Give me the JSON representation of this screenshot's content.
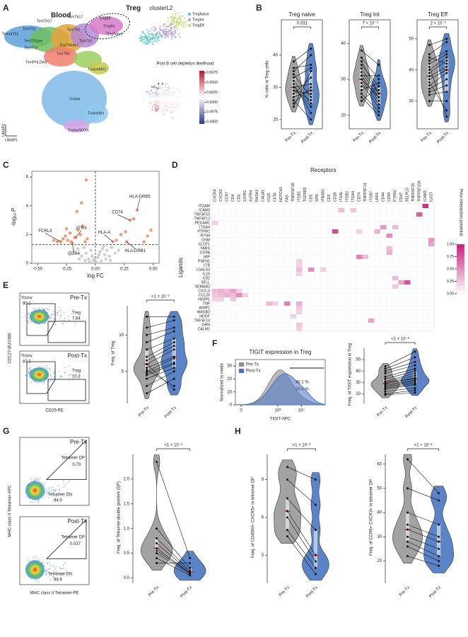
{
  "panel_labels": [
    "A",
    "B",
    "C",
    "D",
    "E",
    "F",
    "G",
    "H"
  ],
  "colors": {
    "pre": "#a3a3a3",
    "post": "#5a84c6"
  },
  "A": {
    "title": "Blood",
    "treg_label": "Treg",
    "clusters": [
      "TemTh17",
      "TcmTh17",
      "TregEff",
      "TregInt",
      "TregNaive",
      "TemraTh1",
      "TemTh1",
      "TemTh1pre",
      "TemTh2",
      "TcmTh1",
      "TcmTh2",
      "TcmTh0Act",
      "TcmTh0",
      "TemPHLDA3",
      "TnaiveMX1",
      "Tnaive",
      "TnaiveAct",
      "TnaiveSOX4"
    ],
    "umap_axes": [
      "UMAP2",
      "UMAP1"
    ],
    "cluster_title": "clusterL2",
    "legend": [
      {
        "name": "TregNaive",
        "color": "#55c4c0"
      },
      {
        "name": "TregInt",
        "color": "#b49ad8"
      },
      {
        "name": "TregEff",
        "color": "#c8d77a"
      }
    ],
    "likelihood_title": "Post B cell depletion likelihood",
    "likelihood_ylim": [
      0.4945,
      0.508
    ],
    "likelihood_ticks": [
      0.5075,
      {
        "value": 0.505,
        "label": "0.5050"
      },
      0.5025,
      {
        "value": 0.5,
        "label": "0.5000"
      },
      0.4975,
      {
        "value": 0.495,
        "label": "0.4950"
      }
    ],
    "likelihood_colors": [
      "#2b3a8f",
      "#ffffff",
      "#b2182b"
    ]
  },
  "B": {
    "ylabel": "% cells in Treg cells",
    "categories": [
      "Pre-Tx",
      "Post-Tx"
    ],
    "panels": [
      {
        "title": "Treg naive",
        "pvalue": "0.031",
        "ylim": [
          18,
          47
        ],
        "yticks": [
          20,
          30,
          40
        ],
        "pre": [
          38,
          35,
          33,
          31,
          30,
          29,
          32,
          28,
          27,
          26,
          34,
          36,
          30,
          25,
          24,
          29
        ],
        "post": [
          42,
          40,
          36,
          22,
          31,
          28,
          25,
          33,
          29,
          20,
          27,
          37,
          24,
          30,
          35,
          26
        ]
      },
      {
        "title": "Treg Int",
        "pvalue": "7 × 10⁻³",
        "ylim": [
          17,
          43
        ],
        "yticks": [
          20,
          30,
          40
        ],
        "pre": [
          38,
          36,
          34,
          33,
          32,
          31,
          30,
          29,
          28,
          27,
          26,
          25,
          35,
          31,
          30,
          24
        ],
        "post": [
          34,
          30,
          28,
          26,
          25,
          24,
          23,
          22,
          27,
          29,
          21,
          20,
          26,
          31,
          25,
          28
        ]
      },
      {
        "title": "Treg Eff",
        "pvalue": "2 × 10⁻³",
        "ylim": [
          22,
          52
        ],
        "yticks": [
          30,
          40,
          50
        ],
        "pre": [
          48,
          45,
          43,
          42,
          40,
          39,
          38,
          37,
          35,
          34,
          33,
          32,
          30,
          36,
          41,
          44
        ],
        "post": [
          50,
          49,
          46,
          45,
          44,
          43,
          41,
          40,
          39,
          37,
          35,
          33,
          30,
          27,
          25,
          42
        ]
      }
    ]
  },
  "C": {
    "ylabel": {
      "main": "-log",
      "sub": "10",
      "italic": "P"
    },
    "xlabel": "log FC",
    "xlim": [
      -0.55,
      0.55
    ],
    "ylim": [
      0,
      6.4
    ],
    "xticks": [
      {
        "value": -0.5,
        "label": "-0.50"
      },
      {
        "value": -0.25,
        "label": "-0.25"
      },
      {
        "value": 0,
        "label": "0.00"
      },
      {
        "value": 0.25,
        "label": "0.25"
      },
      {
        "value": 0.5,
        "label": "0.50"
      }
    ],
    "yticks": [
      0,
      2,
      4,
      6
    ],
    "hline": 1.3,
    "vline": 0,
    "series": [
      {
        "color": "#ee8d62",
        "x": [
          -0.36,
          -0.33,
          -0.3,
          -0.28,
          -0.26,
          -0.24,
          -0.22,
          -0.2,
          -0.18,
          -0.17,
          -0.15,
          -0.13,
          -0.11,
          -0.09,
          -0.07,
          -0.25,
          -0.21,
          -0.12,
          -0.08,
          -0.16,
          0.15,
          0.18,
          0.22,
          0.26,
          0.27,
          0.3,
          0.33,
          0.36,
          0.42,
          0.45,
          0.48
        ],
        "y": [
          1.6,
          1.5,
          1.5,
          1.7,
          1.9,
          1.6,
          2.1,
          1.4,
          1.8,
          1.8,
          2.3,
          2.0,
          2.6,
          1.5,
          1.7,
          2.4,
          1.5,
          4.2,
          5.8,
          3.6,
          1.5,
          1.6,
          2.0,
          2.2,
          1.5,
          3.0,
          3.1,
          3.7,
          1.5,
          1.9,
          2.3
        ]
      },
      {
        "color": "#c9c9c9",
        "x": [
          -0.22,
          -0.18,
          -0.15,
          -0.12,
          -0.1,
          -0.08,
          -0.06,
          -0.04,
          -0.02,
          0,
          0.02,
          0.04,
          0.06,
          0.08,
          0.1,
          0.12,
          0.14,
          0.17,
          0.2,
          -0.14,
          -0.09,
          -0.03,
          0.03,
          0.09,
          0.13,
          -0.05,
          0.05,
          0.01,
          -0.01,
          0.07
        ],
        "y": [
          0.6,
          0.8,
          1.0,
          0.5,
          1.1,
          0.7,
          0.3,
          0.9,
          0.2,
          0.1,
          0.4,
          0.8,
          1.0,
          0.6,
          0.9,
          0.5,
          1.1,
          0.7,
          0.9,
          0.3,
          0.2,
          0.5,
          0.6,
          0.3,
          0.2,
          0.1,
          0.15,
          0.05,
          0.3,
          1.2
        ]
      }
    ],
    "genes": [
      {
        "label": "FCRL3",
        "x": -0.3,
        "y": 1.5
      },
      {
        "label": "ATRX",
        "x": -0.17,
        "y": 1.8
      },
      {
        "label": "ITGA4",
        "x": -0.2,
        "y": 1.4
      },
      {
        "label": "HLA-A",
        "x": 0.15,
        "y": 1.5
      },
      {
        "label": "CD74",
        "x": 0.3,
        "y": 3.0
      },
      {
        "label": "HLA-DRB5",
        "x": 0.36,
        "y": 3.7
      },
      {
        "label": "HLA-DRB1",
        "x": 0.27,
        "y": 1.5
      }
    ]
  },
  "D": {
    "title_x": "Receptors",
    "title_y": "Ligands",
    "receptors": [
      "CXCR4",
      "CXCR3",
      "CCR7",
      "CD4",
      "CD6",
      "S1PR1",
      "S1PR4",
      "RASA3",
      "CALM1",
      "ICOS",
      "CIITA",
      "NOTCH1",
      "FAS",
      "TNFRSF1B",
      "ITGB1",
      "TGFBR2",
      "CD5",
      "SPN",
      "IFNAR1",
      "CD2",
      "CD28",
      "ITGAL",
      "ITGB2",
      "ITGA4",
      "CD74",
      "TNFRSF14",
      "ITGB7",
      "LRP6",
      "CD44",
      "CD99",
      "PTPRC",
      "CD47",
      "SELPLG",
      "TNFRSF25",
      "TNFRSF10A",
      "ICAM2",
      "IL6ST"
    ],
    "ligands": [
      "ITGAM",
      "ICAM3",
      "TNFSF10",
      "TNFSF12",
      "PECAM1",
      "ITGA4",
      "PTPRC",
      "RTN4",
      "OSM",
      "CLCF1",
      "YARS",
      "COPA",
      "MIF",
      "PSEN1",
      "LTB",
      "LGALS3",
      "IL16",
      "CD2",
      "SELL",
      "SEMA4D",
      "CXCL3",
      "CCL20",
      "HEBP1",
      "TNF",
      "AIMP1",
      "HMGB2",
      "HDGF",
      "TNFSF13",
      "GRN",
      "CALM1"
    ],
    "cells": [
      [
        0,
        35,
        0.9
      ],
      [
        1,
        21,
        0.3
      ],
      [
        1,
        23,
        0.25
      ],
      [
        2,
        34,
        0.7
      ],
      [
        4,
        0,
        0.2
      ],
      [
        5,
        28,
        0.45
      ],
      [
        5,
        30,
        0.3
      ],
      [
        6,
        20,
        0.8
      ],
      [
        6,
        24,
        0.2
      ],
      [
        6,
        27,
        0.35
      ],
      [
        7,
        29,
        0.5
      ],
      [
        8,
        36,
        0.45
      ],
      [
        9,
        36,
        0.4
      ],
      [
        10,
        29,
        0.3
      ],
      [
        11,
        29,
        0.35
      ],
      [
        12,
        24,
        0.55
      ],
      [
        12,
        25,
        0.3
      ],
      [
        13,
        14,
        0.2
      ],
      [
        14,
        14,
        0.2
      ],
      [
        15,
        14,
        0.3
      ],
      [
        15,
        16,
        0.5
      ],
      [
        15,
        18,
        0.2
      ],
      [
        16,
        14,
        0.2
      ],
      [
        17,
        30,
        0.3
      ],
      [
        18,
        31,
        0.4
      ],
      [
        18,
        32,
        0.75
      ],
      [
        19,
        30,
        0.25
      ],
      [
        20,
        0,
        0.3
      ],
      [
        20,
        1,
        0.35
      ],
      [
        20,
        2,
        0.3
      ],
      [
        20,
        3,
        0.4
      ],
      [
        20,
        4,
        0.2
      ],
      [
        21,
        0,
        0.25
      ],
      [
        21,
        1,
        0.3
      ],
      [
        21,
        2,
        0.35
      ],
      [
        21,
        3,
        0.3
      ],
      [
        21,
        4,
        0.5
      ],
      [
        21,
        5,
        0.2
      ],
      [
        22,
        0,
        0.2
      ],
      [
        22,
        1,
        0.2
      ],
      [
        22,
        3,
        0.25
      ],
      [
        23,
        9,
        0.3
      ],
      [
        23,
        10,
        0.2
      ],
      [
        23,
        12,
        0.55
      ],
      [
        23,
        14,
        0.35
      ],
      [
        24,
        14,
        0.25
      ],
      [
        25,
        14,
        0.2
      ],
      [
        26,
        13,
        0.2
      ],
      [
        27,
        26,
        0.4
      ],
      [
        28,
        14,
        0.25
      ],
      [
        29,
        14,
        0.2
      ]
    ],
    "legend_title": "Prior interaction potential",
    "legend_lim": [
      0,
      1
    ],
    "legend_ticks": [
      {
        "value": 0,
        "label": "0.00"
      },
      {
        "value": 0.25,
        "label": "0.25"
      },
      {
        "value": 0.5,
        "label": "0.50"
      },
      {
        "value": 0.75,
        "label": "0.75"
      },
      {
        "value": 1,
        "label": "1.00"
      }
    ],
    "colors": [
      "#ffffff",
      "#c51b7d"
    ]
  },
  "E": {
    "flow_ylabel": "CD127-BUV395",
    "flow_xlabel": "CD25-PE",
    "flow": [
      {
        "condition": "Pre-Tx",
        "gates": [
          {
            "name": "Tconv",
            "value": "90.1"
          },
          {
            "name": "Treg",
            "value": "7.84"
          }
        ]
      },
      {
        "condition": "Post-Tx",
        "gates": [
          {
            "name": "Tconv",
            "value": "87.1"
          },
          {
            "name": "Treg",
            "value": "10.3"
          }
        ]
      }
    ],
    "violin": {
      "ylabel": "Freq. of Treg",
      "pvalue": "<1 × 10⁻³",
      "categories": [
        "Pre-Tx",
        "Post-Tx"
      ],
      "ylim": [
        1,
        14
      ],
      "yticks": [
        5,
        10
      ],
      "pre": [
        12.5,
        11,
        10,
        9,
        8,
        7,
        6.5,
        6,
        5.5,
        5,
        4.8,
        4.5,
        4,
        3,
        2,
        5.2,
        6
      ],
      "post": [
        12.5,
        12,
        11,
        10.5,
        9.5,
        9,
        8.5,
        8,
        7,
        6.8,
        6.2,
        6,
        5.5,
        5,
        4,
        3,
        2.5
      ]
    }
  },
  "F": {
    "hist": {
      "title": "TIGIT expression in Treg",
      "ylabel": "Normalized to mode",
      "xlabel": "TIGIT-APC",
      "ylim": [
        0,
        35
      ],
      "yticks": [
        0,
        10,
        20,
        30
      ],
      "xticks": [
        0,
        {
          "value": 1000,
          "label": "10³"
        },
        {
          "value": 10000,
          "label": "10⁴"
        }
      ],
      "series": [
        {
          "name": "Pre-Tx",
          "color": "#8e8e8e",
          "gate_percent": "39.4 %"
        },
        {
          "name": "Post-Tx",
          "color": "#4a72c4",
          "gate_percent": "48.1 %"
        }
      ]
    },
    "violin": {
      "ylabel": "Freq. of TIGIT expression in Treg",
      "pvalue": "<1 × 10⁻³",
      "categories": [
        "Pre-Tx",
        "Post-Tx"
      ],
      "ylim": [
        14,
        60
      ],
      "yticks": [
        20,
        30,
        40,
        50
      ],
      "pre": [
        44,
        42,
        40,
        38,
        35,
        33,
        31,
        30,
        29,
        28,
        27,
        26,
        25,
        24,
        22,
        20,
        19,
        30
      ],
      "post": [
        57,
        52,
        48,
        45,
        42,
        40,
        38,
        36,
        34,
        32,
        31,
        30,
        29,
        28,
        25,
        23,
        21,
        33
      ]
    }
  },
  "G": {
    "flow_ylabel": "MHC class II Tetramer-APC",
    "flow_xlabel": "MHC class II Tetramer-PE",
    "flow": [
      {
        "condition": "Pre-Tx",
        "gates": [
          {
            "name": "Tetramer DP",
            "value": "0.79"
          },
          {
            "name": "Tetramer DN",
            "value": "94.0"
          }
        ]
      },
      {
        "condition": "Post-Tx",
        "gates": [
          {
            "name": "Tetramer DP",
            "value": "0.037"
          },
          {
            "name": "Tetramer DN",
            "value": "98.9"
          }
        ]
      }
    ],
    "violin": {
      "ylabel": "Freq. of Tetramer-double positive (DP)",
      "pvalue": "<1 × 10⁻³",
      "categories": [
        "Pre-Tx",
        "Post-Tx"
      ],
      "ylim": [
        -0.05,
        2.5
      ],
      "yticks": [
        {
          "value": 0,
          "label": "0.0"
        },
        {
          "value": 0.5,
          "label": "0.5"
        },
        {
          "value": 1,
          "label": "1.0"
        },
        {
          "value": 1.5,
          "label": "1.5"
        },
        {
          "value": 2,
          "label": "2.0"
        }
      ],
      "pre": [
        2.35,
        1.0,
        0.8,
        0.7,
        0.6,
        0.55,
        0.5,
        0.4,
        0.3
      ],
      "post": [
        0.4,
        0.2,
        0.15,
        0.12,
        0.1,
        0.1,
        0.08,
        0.05,
        0.3
      ]
    }
  },
  "H": {
    "panels": [
      {
        "ylabel": "Freq. of CD45RA- CXCR5+ in tetramer DP",
        "pvalue": "<1 × 10⁻³",
        "categories": [
          "Pre-Tx",
          "Post-Tx"
        ],
        "ylim": [
          1,
          11
        ],
        "yticks": [
          3,
          6,
          9
        ],
        "pre": [
          10,
          9,
          7.5,
          6.5,
          6,
          5,
          4.5
        ],
        "post": [
          9,
          7,
          5,
          3,
          2.5,
          2,
          1.5
        ]
      },
      {
        "ylabel": "Freq. of CCR6+ CXCR3+ in tetramer DP",
        "pvalue": "<1 × 10⁻³",
        "categories": [
          "Pre-Tx",
          "Post-Tx"
        ],
        "ylim": [
          12,
          64
        ],
        "yticks": [
          20,
          30,
          40,
          50,
          60
        ],
        "pre": [
          62,
          50,
          40,
          35,
          33,
          30,
          28,
          26,
          22
        ],
        "post": [
          48,
          45,
          35,
          30,
          28,
          25,
          22,
          20,
          18
        ]
      }
    ]
  }
}
